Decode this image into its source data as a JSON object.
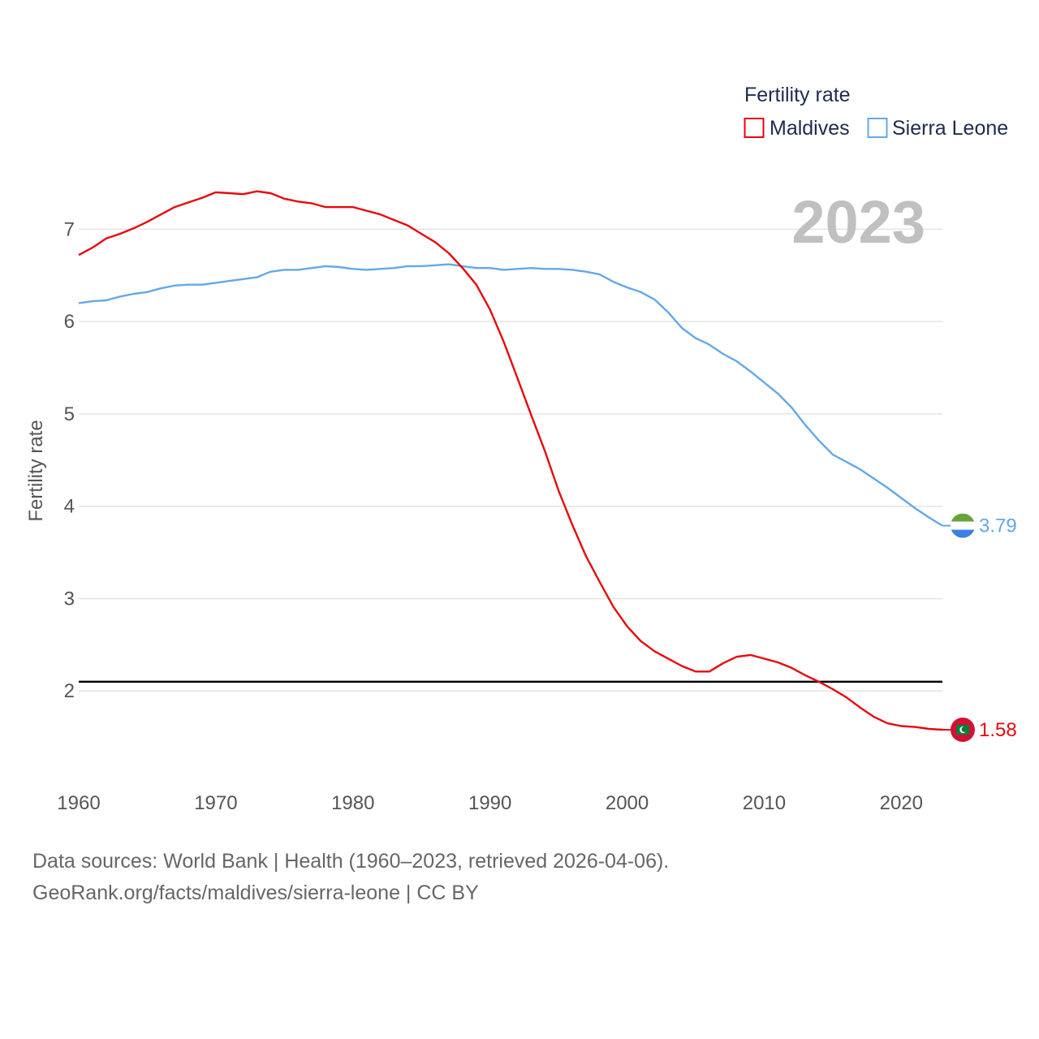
{
  "chart_data": {
    "type": "line",
    "title": "Fertility rate",
    "ylabel": "Fertility rate",
    "xlabel": "",
    "xlim": [
      1960,
      2023
    ],
    "ylim": [
      1,
      7.9
    ],
    "x_ticks": [
      1960,
      1970,
      1980,
      1990,
      2000,
      2010,
      2020
    ],
    "y_ticks": [
      2,
      3,
      4,
      5,
      6,
      7
    ],
    "reference_line": 2.1,
    "year_label": "2023",
    "x": [
      1960,
      1961,
      1962,
      1963,
      1964,
      1965,
      1966,
      1967,
      1968,
      1969,
      1970,
      1971,
      1972,
      1973,
      1974,
      1975,
      1976,
      1977,
      1978,
      1979,
      1980,
      1981,
      1982,
      1983,
      1984,
      1985,
      1986,
      1987,
      1988,
      1989,
      1990,
      1991,
      1992,
      1993,
      1994,
      1995,
      1996,
      1997,
      1998,
      1999,
      2000,
      2001,
      2002,
      2003,
      2004,
      2005,
      2006,
      2007,
      2008,
      2009,
      2010,
      2011,
      2012,
      2013,
      2014,
      2015,
      2016,
      2017,
      2018,
      2019,
      2020,
      2021,
      2022,
      2023
    ],
    "series": [
      {
        "name": "Maldives",
        "color": "#e8070b",
        "end_label": "1.58",
        "values": [
          6.72,
          6.8,
          6.9,
          6.95,
          7.01,
          7.08,
          7.16,
          7.24,
          7.29,
          7.34,
          7.4,
          7.39,
          7.38,
          7.41,
          7.39,
          7.33,
          7.3,
          7.28,
          7.24,
          7.24,
          7.24,
          7.2,
          7.16,
          7.1,
          7.04,
          6.95,
          6.86,
          6.74,
          6.58,
          6.4,
          6.13,
          5.78,
          5.39,
          4.99,
          4.6,
          4.17,
          3.8,
          3.46,
          3.18,
          2.91,
          2.7,
          2.54,
          2.43,
          2.35,
          2.27,
          2.21,
          2.21,
          2.3,
          2.37,
          2.39,
          2.35,
          2.31,
          2.25,
          2.17,
          2.1,
          2.02,
          1.93,
          1.82,
          1.72,
          1.65,
          1.62,
          1.61,
          1.59,
          1.58
        ]
      },
      {
        "name": "Sierra Leone",
        "color": "#64a8e8",
        "end_label": "3.79",
        "values": [
          6.2,
          6.22,
          6.23,
          6.27,
          6.3,
          6.32,
          6.36,
          6.39,
          6.4,
          6.4,
          6.42,
          6.44,
          6.46,
          6.48,
          6.54,
          6.56,
          6.56,
          6.58,
          6.6,
          6.59,
          6.57,
          6.56,
          6.57,
          6.58,
          6.6,
          6.6,
          6.61,
          6.62,
          6.6,
          6.58,
          6.58,
          6.56,
          6.57,
          6.58,
          6.57,
          6.57,
          6.56,
          6.54,
          6.51,
          6.43,
          6.37,
          6.32,
          6.24,
          6.1,
          5.93,
          5.82,
          5.75,
          5.65,
          5.57,
          5.46,
          5.34,
          5.22,
          5.07,
          4.88,
          4.71,
          4.56,
          4.48,
          4.4,
          4.3,
          4.2,
          4.09,
          3.98,
          3.88,
          3.79
        ]
      }
    ]
  },
  "legend": {
    "title": "Fertility rate",
    "items": [
      {
        "label": "Maldives",
        "color": "#e8070b"
      },
      {
        "label": "Sierra Leone",
        "color": "#64a8e8"
      }
    ]
  },
  "footer": {
    "line1": "Data sources: World Bank | Health (1960–2023, retrieved 2026-04-06).",
    "line2": "GeoRank.org/facts/maldives/sierra-leone | CC BY"
  }
}
